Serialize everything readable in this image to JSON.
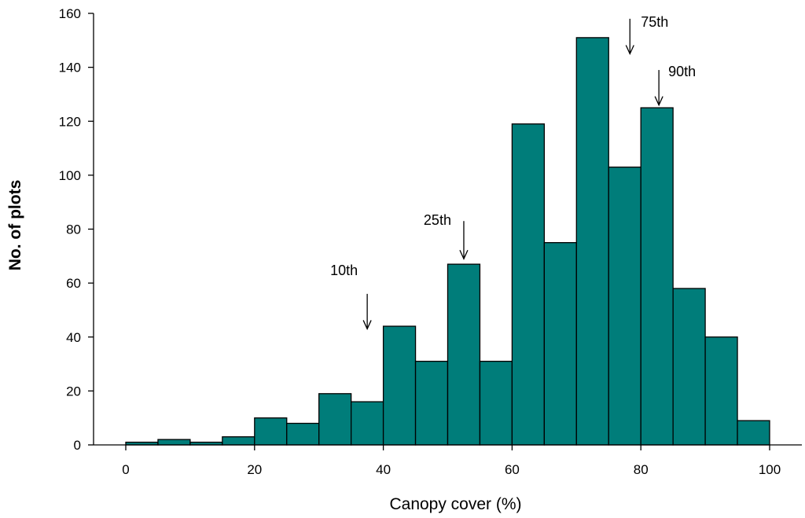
{
  "chart_data": {
    "type": "bar",
    "subtype": "histogram",
    "xlabel": "Canopy cover (%)",
    "ylabel": "No. of plots",
    "xlim": [
      -5,
      105
    ],
    "ylim": [
      0,
      160
    ],
    "xticks": [
      0,
      20,
      40,
      60,
      80,
      100
    ],
    "yticks": [
      0,
      20,
      40,
      60,
      80,
      100,
      120,
      140,
      160
    ],
    "bin_width": 5,
    "bins": [
      {
        "start": 0,
        "end": 5,
        "value": 1
      },
      {
        "start": 5,
        "end": 10,
        "value": 2
      },
      {
        "start": 10,
        "end": 15,
        "value": 1
      },
      {
        "start": 15,
        "end": 20,
        "value": 3
      },
      {
        "start": 20,
        "end": 25,
        "value": 10
      },
      {
        "start": 25,
        "end": 30,
        "value": 8
      },
      {
        "start": 30,
        "end": 35,
        "value": 19
      },
      {
        "start": 35,
        "end": 40,
        "value": 16
      },
      {
        "start": 40,
        "end": 45,
        "value": 44
      },
      {
        "start": 45,
        "end": 50,
        "value": 31
      },
      {
        "start": 50,
        "end": 55,
        "value": 67
      },
      {
        "start": 55,
        "end": 60,
        "value": 31
      },
      {
        "start": 60,
        "end": 65,
        "value": 119
      },
      {
        "start": 65,
        "end": 70,
        "value": 75
      },
      {
        "start": 70,
        "end": 75,
        "value": 151
      },
      {
        "start": 75,
        "end": 80,
        "value": 103
      },
      {
        "start": 80,
        "end": 85,
        "value": 125
      },
      {
        "start": 85,
        "end": 90,
        "value": 58
      },
      {
        "start": 90,
        "end": 95,
        "value": 40
      },
      {
        "start": 95,
        "end": 100,
        "value": 9
      }
    ],
    "bar_color": "#007d7a",
    "grid": false,
    "annotations": [
      {
        "label": "10th",
        "x": 37.5,
        "arrow_tip_y": 43,
        "arrow_top_y": 56
      },
      {
        "label": "25th",
        "x": 52.5,
        "arrow_tip_y": 69,
        "arrow_top_y": 83
      },
      {
        "label": "75th",
        "x": 78.3,
        "arrow_tip_y": 145,
        "arrow_top_y": 158
      },
      {
        "label": "90th",
        "x": 82.8,
        "arrow_tip_y": 126,
        "arrow_top_y": 139
      }
    ]
  }
}
